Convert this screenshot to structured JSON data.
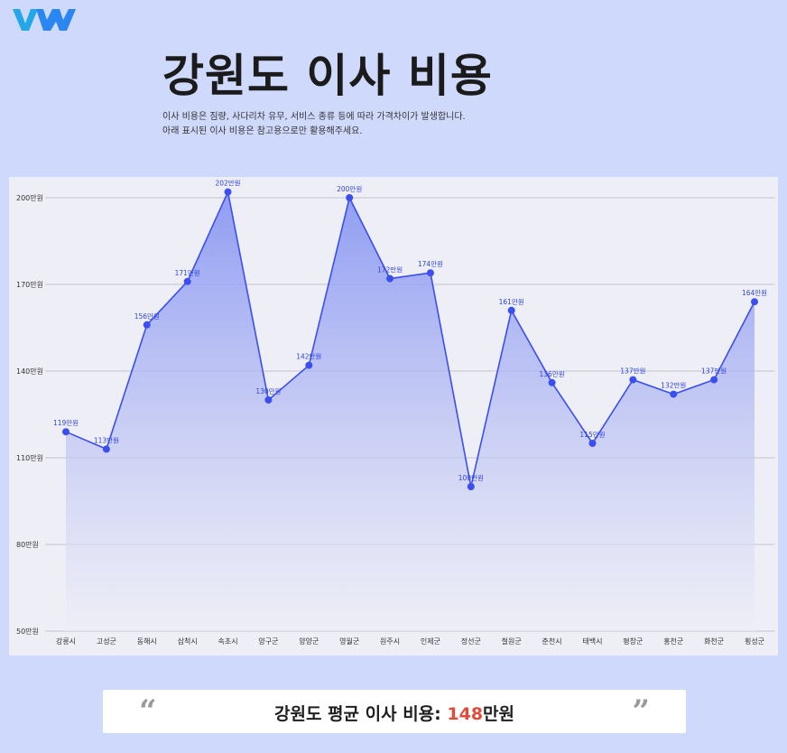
{
  "header": {
    "logo_icon": "wm-logo-icon",
    "title": "강원도 이사 비용",
    "desc_line1": "이사 비용은 짐량, 사다리차 유무, 서비스 종류 등에 따라 가격차이가 발생합니다.",
    "desc_line2": "아래 표시된 이사 비용은 참고용으로만 활용해주세요."
  },
  "chart_data": {
    "type": "area",
    "categories": [
      "강릉시",
      "고성군",
      "동해시",
      "삼척시",
      "속초시",
      "양구군",
      "양양군",
      "영월군",
      "원주시",
      "인제군",
      "정선군",
      "철원군",
      "춘천시",
      "태백시",
      "평창군",
      "홍천군",
      "화천군",
      "횡성군"
    ],
    "values": [
      119,
      113,
      156,
      171,
      202,
      130,
      142,
      200,
      172,
      174,
      100,
      161,
      136,
      115,
      137,
      132,
      137,
      164
    ],
    "data_labels": [
      "119만원",
      "113만원",
      "156만원",
      "171만원",
      "202만원",
      "130만원",
      "142만원",
      "200만원",
      "172만원",
      "174만원",
      "100만원",
      "161만원",
      "136만원",
      "115만원",
      "137만원",
      "132만원",
      "137만원",
      "164만원"
    ],
    "yticks": [
      50,
      80,
      110,
      140,
      170,
      200
    ],
    "ytick_labels": [
      "50만원",
      "80만원",
      "110만원",
      "140만원",
      "170만원",
      "200만원"
    ],
    "ylim": [
      50,
      200
    ],
    "grid": true,
    "colors": {
      "line": "#3b4ef0",
      "fill_top": "#7f8ef2",
      "fill_bottom": "#eeeef6",
      "label": "#2f43e6"
    }
  },
  "summary": {
    "open_quote": "“",
    "close_quote": "”",
    "label": "강원도 평균 이사 비용: ",
    "value": "148",
    "unit": "만원",
    "value_color": "#e24a3b"
  }
}
